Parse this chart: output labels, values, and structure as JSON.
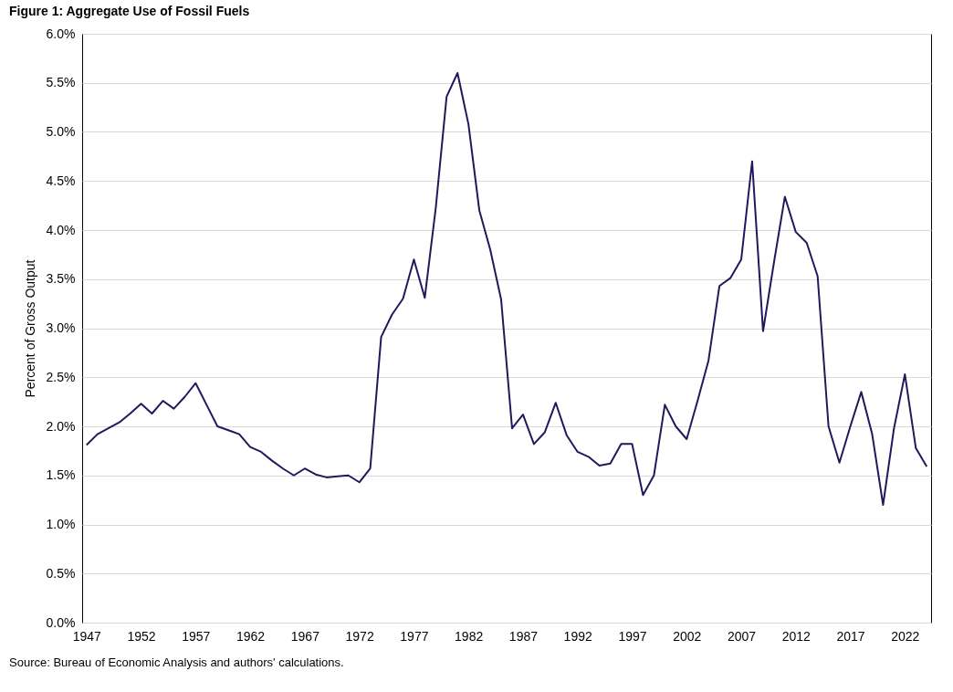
{
  "chart_data": {
    "type": "line",
    "title": "Figure 1: Aggregate Use of Fossil Fuels",
    "ylabel": "Percent of Gross Output",
    "categories": [
      "1947",
      null,
      null,
      null,
      null,
      "1952",
      null,
      null,
      null,
      null,
      "1957",
      null,
      null,
      null,
      null,
      "1962",
      null,
      null,
      null,
      null,
      "1967",
      null,
      null,
      null,
      null,
      "1972",
      null,
      null,
      null,
      null,
      "1977",
      null,
      null,
      null,
      null,
      "1982",
      null,
      null,
      null,
      null,
      "1987",
      null,
      null,
      null,
      null,
      "1992",
      null,
      null,
      null,
      null,
      "1997",
      null,
      null,
      null,
      null,
      "2002",
      null,
      null,
      null,
      null,
      "2007",
      null,
      null,
      null,
      null,
      "2012",
      null,
      null,
      null,
      null,
      "2017",
      null,
      null,
      null,
      null,
      "2022",
      null,
      null
    ],
    "series": [
      {
        "color": "#1f1a5c",
        "values": [
          1.81,
          1.92,
          1.98,
          2.04,
          2.13,
          2.23,
          2.13,
          2.26,
          2.18,
          2.3,
          2.44,
          2.22,
          2.0,
          1.96,
          1.92,
          1.79,
          1.74,
          1.65,
          1.57,
          1.5,
          1.57,
          1.51,
          1.48,
          1.49,
          1.5,
          1.43,
          1.57,
          2.91,
          3.14,
          3.3,
          3.7,
          3.31,
          4.22,
          5.36,
          5.6,
          5.08,
          4.2,
          3.8,
          3.29,
          1.98,
          2.12,
          1.82,
          1.94,
          2.24,
          1.91,
          1.74,
          1.69,
          1.6,
          1.62,
          1.82,
          1.82,
          1.3,
          1.5,
          2.22,
          2.0,
          1.87,
          2.26,
          2.67,
          3.43,
          3.51,
          3.7,
          4.7,
          2.97,
          3.67,
          4.34,
          3.98,
          3.87,
          3.53,
          2.0,
          1.63,
          2.0,
          2.35,
          1.92,
          1.2,
          1.98,
          2.53,
          1.78,
          1.59
        ]
      }
    ],
    "ylim": [
      0,
      6
    ],
    "yticks": [
      {
        "value": 0,
        "label": "0.0%"
      },
      {
        "value": 0.5,
        "label": "0.5%"
      },
      {
        "value": 1,
        "label": "1.0%"
      },
      {
        "value": 1.5,
        "label": "1.5%"
      },
      {
        "value": 2,
        "label": "2.0%"
      },
      {
        "value": 2.5,
        "label": "2.5%"
      },
      {
        "value": 3,
        "label": "3.0%"
      },
      {
        "value": 3.5,
        "label": "3.5%"
      },
      {
        "value": 4,
        "label": "4.0%"
      },
      {
        "value": 4.5,
        "label": "4.5%"
      },
      {
        "value": 5,
        "label": "5.0%"
      },
      {
        "value": 5.5,
        "label": "5.5%"
      },
      {
        "value": 6,
        "label": "6.0%"
      }
    ],
    "grid": "y",
    "marker": "none",
    "line_style": "solid",
    "annotations": [
      "Source: Bureau of Economic Analysis and authors' calculations."
    ]
  }
}
